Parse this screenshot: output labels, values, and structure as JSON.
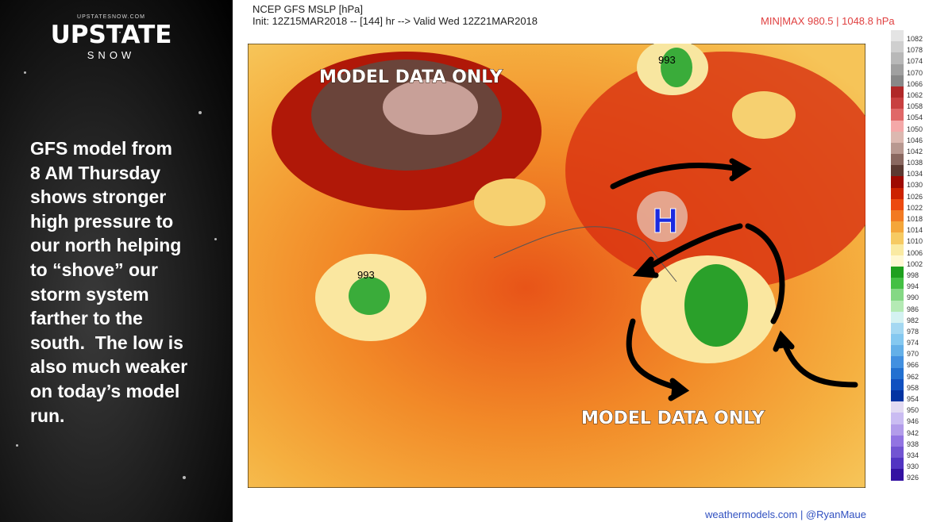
{
  "branding": {
    "site": "UPSTATESNOW.COM",
    "name": "UPSTATE",
    "sub": "SNOW"
  },
  "caption": {
    "lines": [
      "GFS model from",
      "8 AM Thursday",
      "shows stronger",
      "high pressure to",
      "our north helping",
      "to “shove” our",
      "storm system",
      "farther to the",
      "south.  The low is",
      "also much weaker",
      "on today’s model",
      "run."
    ]
  },
  "header": {
    "title": "NCEP GFS MSLP [hPa]",
    "init": "Init: 12Z15MAR2018 -- [144] hr --> Valid Wed 12Z21MAR2018",
    "minmax": "MIN|MAX 980.5 | 1048.8 hPa"
  },
  "map": {
    "annotations": [
      "MODEL DATA ONLY",
      "MODEL DATA ONLY"
    ],
    "high_marker": "H",
    "low_labels": [
      "993",
      "993"
    ]
  },
  "colorbar": [
    {
      "label": 1082,
      "color": "#e4e4e4"
    },
    {
      "label": 1078,
      "color": "#cfcfcf"
    },
    {
      "label": 1074,
      "color": "#b8b8b8"
    },
    {
      "label": 1070,
      "color": "#a0a0a0"
    },
    {
      "label": 1066,
      "color": "#888888"
    },
    {
      "label": 1062,
      "color": "#b02828"
    },
    {
      "label": 1058,
      "color": "#c84040"
    },
    {
      "label": 1054,
      "color": "#e06868"
    },
    {
      "label": 1050,
      "color": "#f4a8a8"
    },
    {
      "label": 1046,
      "color": "#dcb8b0"
    },
    {
      "label": 1042,
      "color": "#b89890"
    },
    {
      "label": 1038,
      "color": "#8a6860"
    },
    {
      "label": 1034,
      "color": "#5c3a32"
    },
    {
      "label": 1030,
      "color": "#9e0a02"
    },
    {
      "label": 1026,
      "color": "#cc2200"
    },
    {
      "label": 1022,
      "color": "#ec4a10"
    },
    {
      "label": 1018,
      "color": "#f27a22"
    },
    {
      "label": 1014,
      "color": "#f4a63a"
    },
    {
      "label": 1010,
      "color": "#f6ca62"
    },
    {
      "label": 1006,
      "color": "#faeaa2"
    },
    {
      "label": 1002,
      "color": "#fff8d2"
    },
    {
      "label": 998,
      "color": "#1ea01e"
    },
    {
      "label": 994,
      "color": "#44c044"
    },
    {
      "label": 990,
      "color": "#84d884"
    },
    {
      "label": 986,
      "color": "#b4eab4"
    },
    {
      "label": 982,
      "color": "#d4f2f2"
    },
    {
      "label": 978,
      "color": "#a4d8f2"
    },
    {
      "label": 974,
      "color": "#84c8f0"
    },
    {
      "label": 970,
      "color": "#64b0e8"
    },
    {
      "label": 966,
      "color": "#4290e0"
    },
    {
      "label": 962,
      "color": "#2270d0"
    },
    {
      "label": 958,
      "color": "#1050c0"
    },
    {
      "label": 954,
      "color": "#0434a2"
    },
    {
      "label": 950,
      "color": "#e2daf2"
    },
    {
      "label": 946,
      "color": "#cabcf2"
    },
    {
      "label": 942,
      "color": "#b29cea"
    },
    {
      "label": 938,
      "color": "#9274e2"
    },
    {
      "label": 934,
      "color": "#7254d2"
    },
    {
      "label": 930,
      "color": "#5234c2"
    },
    {
      "label": 926,
      "color": "#3412a2"
    }
  ],
  "footer": {
    "credit": "weathermodels.com | @RyanMaue"
  }
}
